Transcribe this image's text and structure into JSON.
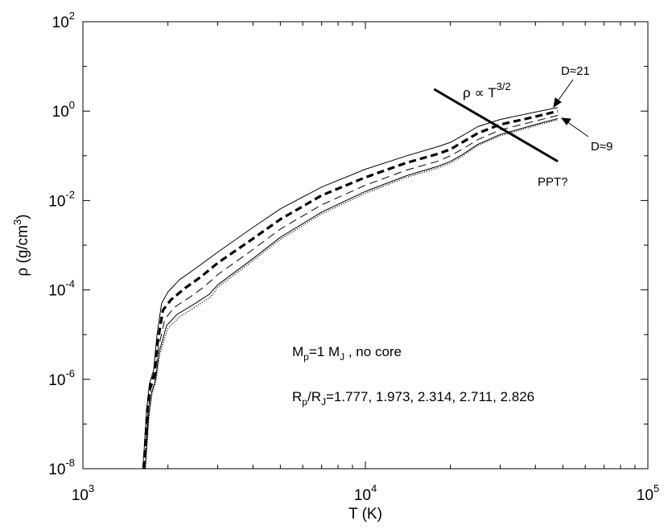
{
  "chart_data": {
    "type": "line",
    "title": "",
    "xlabel": "T (K)",
    "ylabel": "ρ (g/cm³)",
    "ylabel_parts": {
      "base": "ρ (g/cm",
      "sup": "3",
      "tail": ")"
    },
    "xscale": "log",
    "yscale": "log",
    "xlim": [
      1000,
      100000
    ],
    "ylim": [
      1e-08,
      100
    ],
    "grid": false,
    "legend": "none",
    "x_ticks": [
      {
        "base": "10",
        "exp": "3",
        "value": 1000
      },
      {
        "base": "10",
        "exp": "4",
        "value": 10000
      },
      {
        "base": "10",
        "exp": "5",
        "value": 100000
      }
    ],
    "y_ticks": [
      {
        "base": "10",
        "exp": "-8",
        "value": 1e-08
      },
      {
        "base": "10",
        "exp": "-6",
        "value": 1e-06
      },
      {
        "base": "10",
        "exp": "-4",
        "value": 0.0001
      },
      {
        "base": "10",
        "exp": "-2",
        "value": 0.01
      },
      {
        "base": "10",
        "exp": "0",
        "value": 1
      },
      {
        "base": "10",
        "exp": "2",
        "value": 100
      }
    ],
    "series": [
      {
        "style": "solid-thin",
        "points": [
          [
            1630,
            1e-08
          ],
          [
            1650,
            3e-08
          ],
          [
            1680,
            2e-07
          ],
          [
            1720,
            8e-07
          ],
          [
            1780,
            1.6e-06
          ],
          [
            1830,
            1e-05
          ],
          [
            1900,
            5e-05
          ],
          [
            2000,
            9e-05
          ],
          [
            2200,
            0.00017
          ],
          [
            2500,
            0.0003
          ],
          [
            3000,
            0.0007
          ],
          [
            4000,
            0.0025
          ],
          [
            5000,
            0.0065
          ],
          [
            7000,
            0.02
          ],
          [
            10000,
            0.05
          ],
          [
            14000,
            0.1
          ],
          [
            18000,
            0.16
          ],
          [
            20000,
            0.2
          ],
          [
            22000,
            0.28
          ],
          [
            25000,
            0.45
          ],
          [
            30000,
            0.65
          ],
          [
            40000,
            0.95
          ],
          [
            48000,
            1.2
          ]
        ]
      },
      {
        "style": "dashed-thick",
        "points": [
          [
            1640,
            1e-08
          ],
          [
            1660,
            3e-08
          ],
          [
            1690,
            2e-07
          ],
          [
            1730,
            7e-07
          ],
          [
            1790,
            1.3e-06
          ],
          [
            1840,
            7e-06
          ],
          [
            1920,
            3.5e-05
          ],
          [
            2050,
            6e-05
          ],
          [
            2300,
            0.00011
          ],
          [
            2600,
            0.00019
          ],
          [
            3000,
            0.0004
          ],
          [
            4000,
            0.0014
          ],
          [
            5000,
            0.0038
          ],
          [
            7000,
            0.013
          ],
          [
            10000,
            0.033
          ],
          [
            14000,
            0.07
          ],
          [
            18000,
            0.11
          ],
          [
            20000,
            0.14
          ],
          [
            22000,
            0.2
          ],
          [
            25000,
            0.32
          ],
          [
            30000,
            0.5
          ],
          [
            40000,
            0.75
          ],
          [
            48000,
            1.0
          ]
        ]
      },
      {
        "style": "dashed-thin",
        "points": [
          [
            1650,
            1e-08
          ],
          [
            1670,
            3e-08
          ],
          [
            1700,
            1.8e-07
          ],
          [
            1740,
            6e-07
          ],
          [
            1800,
            1.1e-06
          ],
          [
            1850,
            5e-06
          ],
          [
            1950,
            2.2e-05
          ],
          [
            2100,
            4e-05
          ],
          [
            2400,
            7e-05
          ],
          [
            2700,
            0.00012
          ],
          [
            3000,
            0.00022
          ],
          [
            4000,
            0.0008
          ],
          [
            5000,
            0.0023
          ],
          [
            7000,
            0.008
          ],
          [
            10000,
            0.022
          ],
          [
            14000,
            0.048
          ],
          [
            18000,
            0.075
          ],
          [
            20000,
            0.1
          ],
          [
            22000,
            0.14
          ],
          [
            25000,
            0.23
          ],
          [
            30000,
            0.38
          ],
          [
            40000,
            0.6
          ],
          [
            48000,
            0.8
          ]
        ]
      },
      {
        "style": "solid-thin",
        "points": [
          [
            1660,
            1e-08
          ],
          [
            1680,
            3e-08
          ],
          [
            1710,
            1.6e-07
          ],
          [
            1750,
            5e-07
          ],
          [
            1810,
            1e-06
          ],
          [
            1860,
            4e-06
          ],
          [
            1980,
            1.6e-05
          ],
          [
            2150,
            2.8e-05
          ],
          [
            2500,
            5e-05
          ],
          [
            2800,
            8e-05
          ],
          [
            3000,
            0.00013
          ],
          [
            4000,
            0.0005
          ],
          [
            5000,
            0.0015
          ],
          [
            7000,
            0.0055
          ],
          [
            10000,
            0.016
          ],
          [
            14000,
            0.036
          ],
          [
            18000,
            0.058
          ],
          [
            20000,
            0.075
          ],
          [
            22000,
            0.105
          ],
          [
            25000,
            0.18
          ],
          [
            30000,
            0.3
          ],
          [
            40000,
            0.5
          ],
          [
            48000,
            0.68
          ]
        ]
      },
      {
        "style": "dotted",
        "points": [
          [
            1665,
            1e-08
          ],
          [
            1685,
            3e-08
          ],
          [
            1715,
            1.5e-07
          ],
          [
            1755,
            4.6e-07
          ],
          [
            1815,
            9.5e-07
          ],
          [
            1870,
            3.6e-06
          ],
          [
            2000,
            1.4e-05
          ],
          [
            2200,
            2.5e-05
          ],
          [
            2550,
            4.5e-05
          ],
          [
            2850,
            7.2e-05
          ],
          [
            3000,
            0.000115
          ],
          [
            4000,
            0.00045
          ],
          [
            5000,
            0.00135
          ],
          [
            7000,
            0.005
          ],
          [
            10000,
            0.0145
          ],
          [
            14000,
            0.033
          ],
          [
            18000,
            0.053
          ],
          [
            20000,
            0.069
          ],
          [
            22000,
            0.097
          ],
          [
            25000,
            0.17
          ],
          [
            30000,
            0.28
          ],
          [
            40000,
            0.47
          ],
          [
            48000,
            0.64
          ]
        ]
      }
    ],
    "trend_line": {
      "label": "ρ ∝ T^3/2",
      "x": [
        17500,
        48000
      ],
      "y": [
        3.1,
        0.075
      ]
    },
    "annotations": {
      "rho_law": {
        "base": "ρ ∝ T",
        "sup": "3/2"
      },
      "d21": "D≈21",
      "d9": "D≈9",
      "ppt": "PPT?",
      "mass": {
        "m": "M",
        "m_sub": "p",
        "eq": "=1 M",
        "j_sub": "J",
        "tail": " ,  no core"
      },
      "radii": {
        "r": "R",
        "r_sub": "p",
        "slash": "/R",
        "j_sub": "J",
        "values": "=1.777, 1.973, 2.314, 2.711, 2.826"
      }
    }
  }
}
